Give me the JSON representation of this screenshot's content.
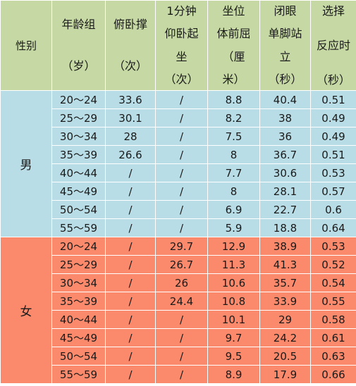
{
  "headers": {
    "sex": "性别",
    "age": [
      "年龄组",
      "（岁）"
    ],
    "pushup": [
      "俯卧撑",
      "（次）"
    ],
    "situp": [
      "1分钟",
      "仰卧起",
      "坐",
      "（次）"
    ],
    "sitreach": [
      "坐位",
      "体前屈",
      "（厘",
      "米）"
    ],
    "balance": [
      "闭眼",
      "单脚站",
      "立",
      "（秒）"
    ],
    "reaction": [
      "选择",
      "反应时",
      "（秒）"
    ]
  },
  "groups": [
    {
      "sex": "男",
      "rows": [
        [
          "20～24",
          "33.6",
          "/",
          "8.8",
          "40.4",
          "0.51"
        ],
        [
          "25～29",
          "30.1",
          "/",
          "8.2",
          "38",
          "0.49"
        ],
        [
          "30～34",
          "28",
          "/",
          "7.5",
          "36",
          "0.49"
        ],
        [
          "35～39",
          "26.6",
          "/",
          "8",
          "36.7",
          "0.51"
        ],
        [
          "40～44",
          "/",
          "/",
          "7.7",
          "30.6",
          "0.53"
        ],
        [
          "45～49",
          "/",
          "/",
          "8",
          "28.1",
          "0.57"
        ],
        [
          "50～54",
          "/",
          "/",
          "6.9",
          "22.7",
          "0.6"
        ],
        [
          "55～59",
          "/",
          "/",
          "5.9",
          "18.8",
          "0.64"
        ]
      ]
    },
    {
      "sex": "女",
      "rows": [
        [
          "20～24",
          "/",
          "29.7",
          "12.9",
          "38.9",
          "0.53"
        ],
        [
          "25～29",
          "/",
          "26.7",
          "11.3",
          "41.3",
          "0.52"
        ],
        [
          "30～34",
          "/",
          "26",
          "10.6",
          "35.7",
          "0.54"
        ],
        [
          "35～39",
          "/",
          "24.4",
          "10.8",
          "33.9",
          "0.55"
        ],
        [
          "40～44",
          "/",
          "/",
          "10.1",
          "29",
          "0.58"
        ],
        [
          "45～49",
          "/",
          "/",
          "9.7",
          "24.2",
          "0.61"
        ],
        [
          "50～54",
          "/",
          "/",
          "9.5",
          "20.5",
          "0.63"
        ],
        [
          "55～59",
          "/",
          "/",
          "8.9",
          "17.9",
          "0.66"
        ]
      ]
    }
  ],
  "colors": {
    "header": "#c6d9a4",
    "male": "#b8dde6",
    "female": "#fb8a6c",
    "border": "#ffffff"
  }
}
